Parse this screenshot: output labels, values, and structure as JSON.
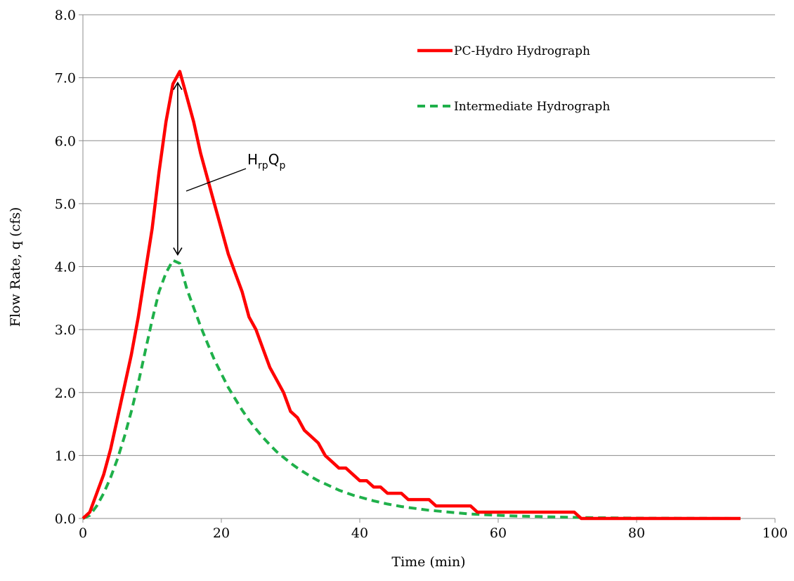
{
  "chart_data": {
    "type": "line",
    "xlabel": "Time (min)",
    "ylabel": "Flow Rate, q (cfs)",
    "xlim": [
      0,
      100
    ],
    "ylim": [
      0,
      8
    ],
    "x_ticks": [
      "0",
      "20",
      "40",
      "60",
      "80",
      "100"
    ],
    "y_ticks": [
      "0.0",
      "1.0",
      "2.0",
      "3.0",
      "4.0",
      "5.0",
      "6.0",
      "7.0",
      "8.0"
    ],
    "grid": "horizontal",
    "legend_position": "top-right",
    "annotation": {
      "main_1": "H",
      "sub_1": "rp",
      "main_2": "Q",
      "sub_2": "p"
    },
    "series": [
      {
        "name": "PC-Hydro Hydrograph",
        "color": "#ff0000",
        "style": "solid",
        "x": [
          0,
          1,
          2,
          3,
          4,
          5,
          6,
          7,
          8,
          9,
          10,
          11,
          12,
          13,
          14,
          15,
          16,
          17,
          18,
          19,
          20,
          21,
          22,
          23,
          24,
          25,
          26,
          27,
          28,
          29,
          30,
          31,
          32,
          33,
          34,
          35,
          36,
          37,
          38,
          39,
          40,
          41,
          42,
          43,
          44,
          45,
          46,
          47,
          48,
          49,
          50,
          51,
          52,
          53,
          54,
          55,
          56,
          57,
          58,
          59,
          60,
          61,
          62,
          63,
          64,
          65,
          66,
          67,
          68,
          69,
          70,
          71,
          72,
          73,
          74,
          75,
          76,
          77,
          78,
          79,
          80,
          81,
          82,
          83,
          84,
          85,
          86,
          87,
          88,
          89,
          90,
          91,
          92,
          93,
          94,
          95
        ],
        "y": [
          0,
          0.1,
          0.4,
          0.7,
          1.1,
          1.6,
          2.1,
          2.6,
          3.2,
          3.9,
          4.6,
          5.5,
          6.3,
          6.9,
          7.1,
          6.7,
          6.3,
          5.8,
          5.4,
          5.0,
          4.6,
          4.2,
          3.9,
          3.6,
          3.2,
          3.0,
          2.7,
          2.4,
          2.2,
          2.0,
          1.7,
          1.6,
          1.4,
          1.3,
          1.2,
          1.0,
          0.9,
          0.8,
          0.8,
          0.7,
          0.6,
          0.6,
          0.5,
          0.5,
          0.4,
          0.4,
          0.4,
          0.3,
          0.3,
          0.3,
          0.3,
          0.2,
          0.2,
          0.2,
          0.2,
          0.2,
          0.2,
          0.1,
          0.1,
          0.1,
          0.1,
          0.1,
          0.1,
          0.1,
          0.1,
          0.1,
          0.1,
          0.1,
          0.1,
          0.1,
          0.1,
          0.1,
          0,
          0,
          0,
          0,
          0,
          0,
          0,
          0,
          0,
          0,
          0,
          0,
          0,
          0,
          0,
          0,
          0,
          0,
          0,
          0,
          0,
          0,
          0,
          0
        ]
      },
      {
        "name": "Intermediate Hydrograph",
        "color": "#1fb04a",
        "style": "dashed",
        "x": [
          0,
          1,
          2,
          3,
          4,
          5,
          6,
          7,
          8,
          9,
          10,
          11,
          12,
          13,
          14,
          15,
          16,
          17,
          18,
          19,
          20,
          21,
          22,
          23,
          24,
          25,
          26,
          27,
          28,
          29,
          30,
          31,
          32,
          33,
          34,
          35,
          36,
          37,
          38,
          39,
          40,
          42,
          44,
          46,
          48,
          50,
          52,
          54,
          56,
          58,
          60,
          62,
          64,
          66,
          68,
          70,
          72,
          74,
          76,
          78,
          80,
          82,
          84,
          86,
          88,
          90,
          92,
          95
        ],
        "y": [
          0,
          0.05,
          0.2,
          0.4,
          0.65,
          0.95,
          1.3,
          1.7,
          2.15,
          2.65,
          3.15,
          3.6,
          3.9,
          4.1,
          4.05,
          3.65,
          3.35,
          3.05,
          2.78,
          2.52,
          2.3,
          2.08,
          1.9,
          1.72,
          1.56,
          1.42,
          1.29,
          1.17,
          1.06,
          0.97,
          0.88,
          0.8,
          0.73,
          0.66,
          0.6,
          0.55,
          0.5,
          0.45,
          0.41,
          0.37,
          0.34,
          0.28,
          0.23,
          0.19,
          0.16,
          0.13,
          0.11,
          0.09,
          0.07,
          0.06,
          0.05,
          0.04,
          0.035,
          0.03,
          0.025,
          0.02,
          0.015,
          0.012,
          0.01,
          0.008,
          0.006,
          0.005,
          0.004,
          0.003,
          0.002,
          0.002,
          0.001,
          0
        ]
      }
    ]
  }
}
